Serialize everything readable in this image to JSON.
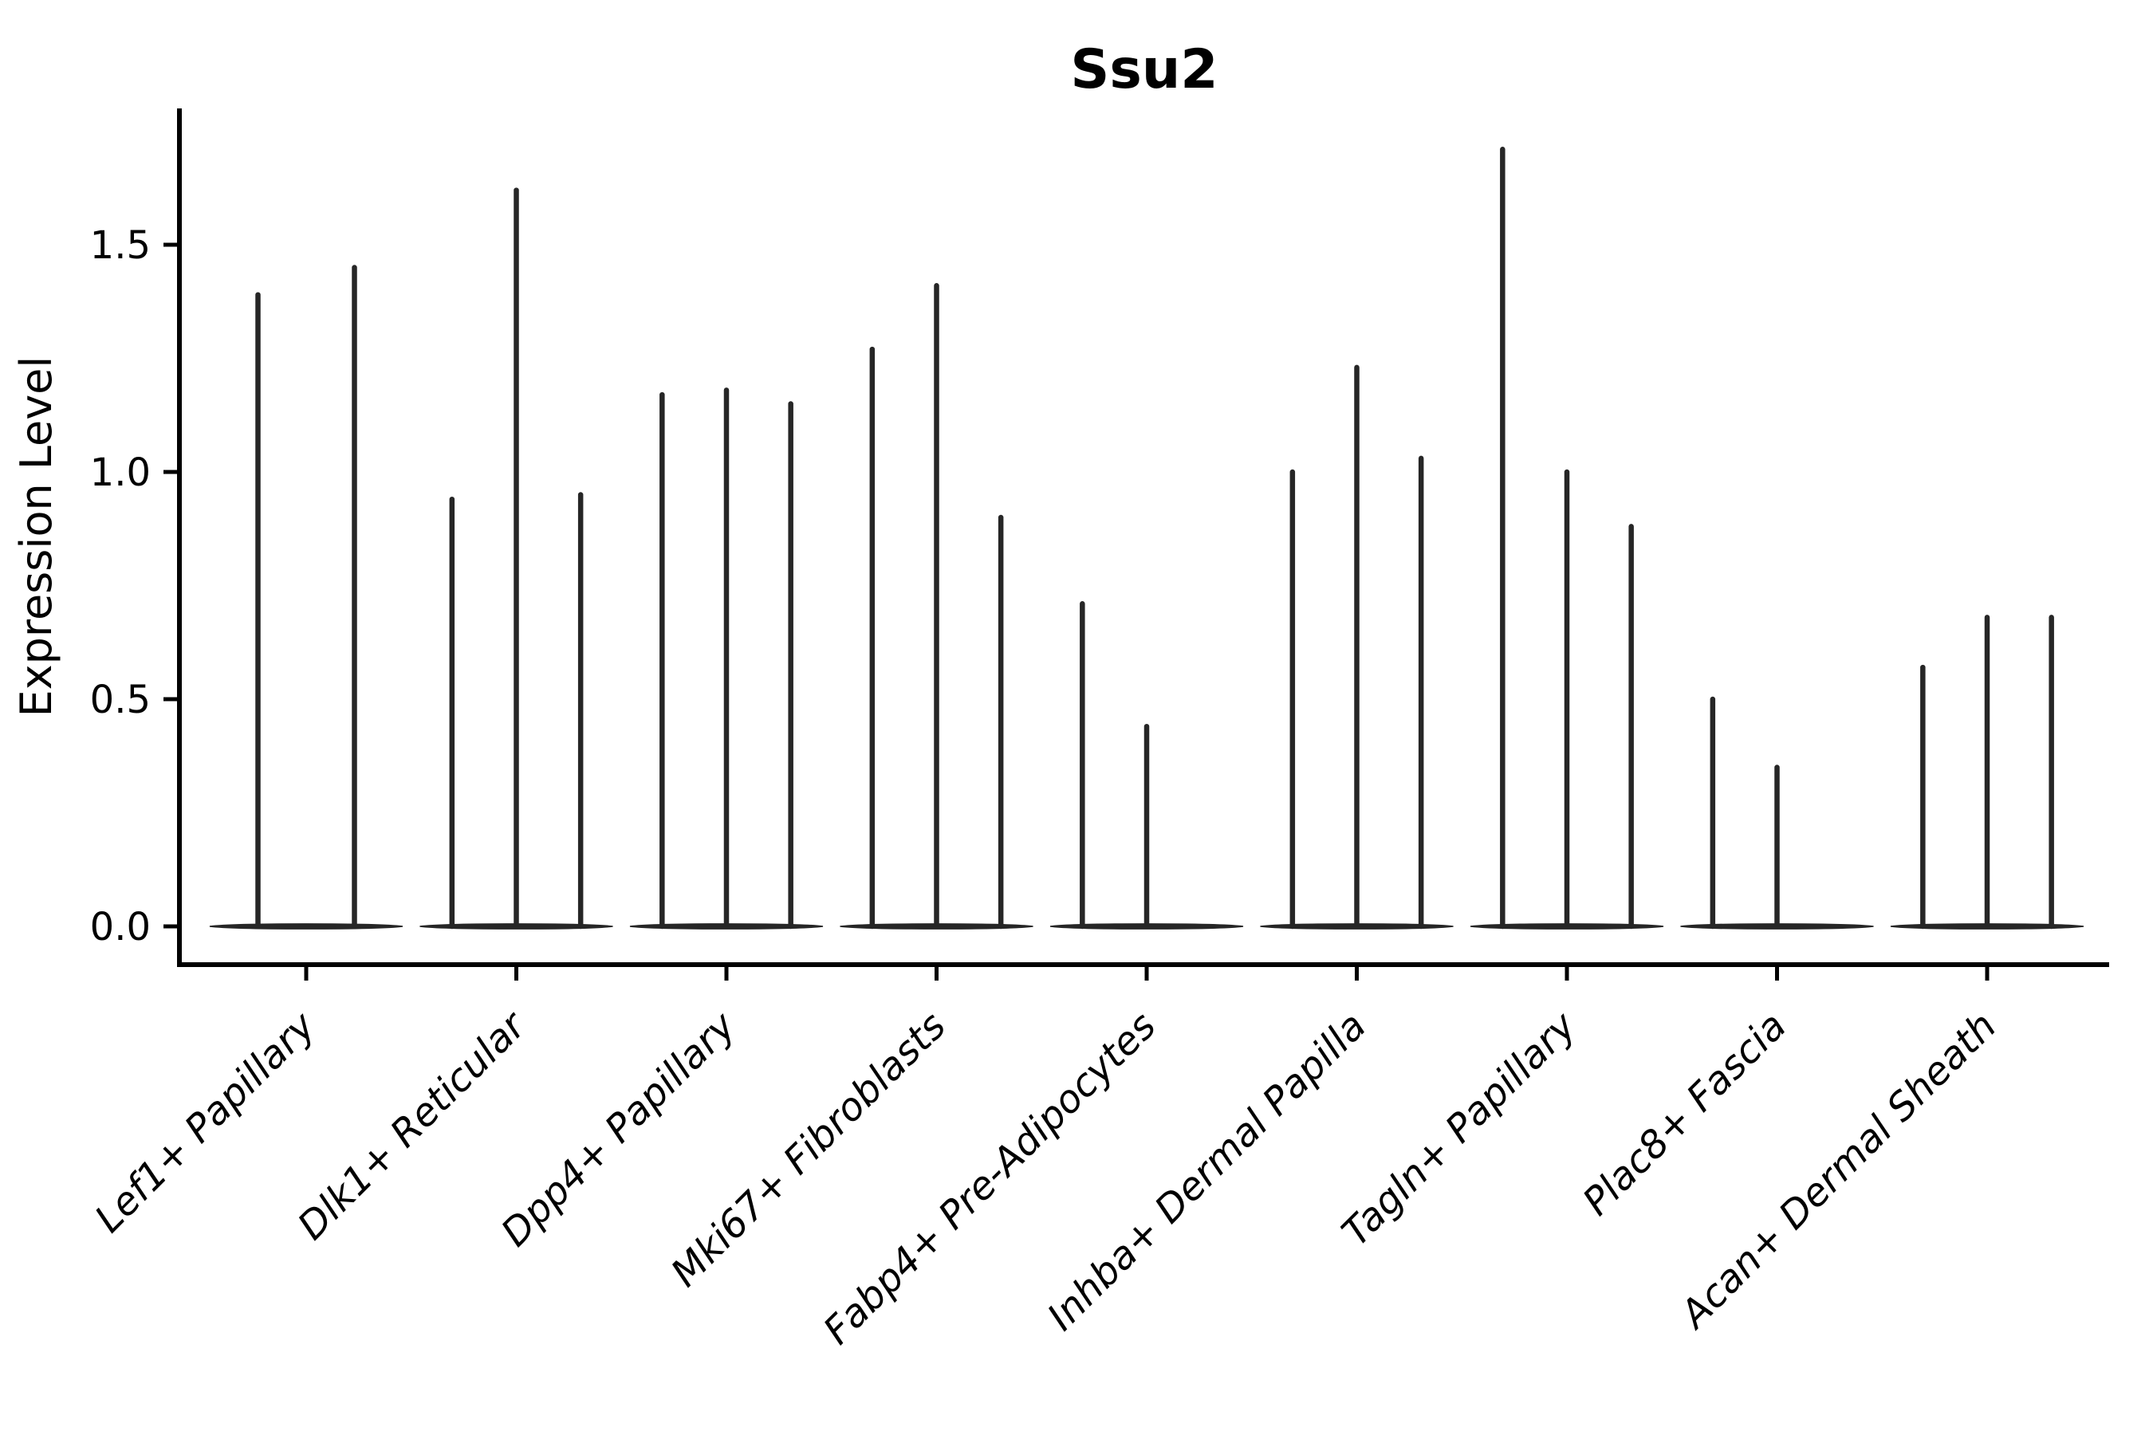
{
  "figure": {
    "title": "Ssu2",
    "y_axis_label": "Expression Level",
    "y_tick_labels": [
      "0.0",
      "0.5",
      "1.0",
      "1.5"
    ],
    "x_tick_labels": [
      "Lef1+ Papillary",
      "Dlk1+ Reticular",
      "Dpp4+ Papillary",
      "Mki67+ Fibroblasts",
      "Fabp4+ Pre-Adipocytes",
      "Inhba+ Dermal Papilla",
      "Tagln+ Papillary",
      "Plac8+ Fascia",
      "Acan+ Dermal Sheath"
    ]
  },
  "chart_data": {
    "type": "violin",
    "title": "Ssu2",
    "xlabel": "",
    "ylabel": "Expression Level",
    "yticks": [
      0.0,
      0.5,
      1.0,
      1.5
    ],
    "ylim": [
      -0.09,
      1.8
    ],
    "grid": false,
    "legend": null,
    "categories": [
      "Lef1+ Papillary",
      "Dlk1+ Reticular",
      "Dpp4+ Papillary",
      "Mki67+ Fibroblasts",
      "Fabp4+ Pre-Adipocytes",
      "Inhba+ Dermal Papilla",
      "Tagln+ Papillary",
      "Plac8+ Fascia",
      "Acan+ Dermal Sheath"
    ],
    "groups": [
      {
        "category": "Lef1+ Papillary",
        "violin_peak_values": [
          1.39,
          1.45
        ]
      },
      {
        "category": "Dlk1+ Reticular",
        "violin_peak_values": [
          0.94,
          1.62,
          0.95
        ]
      },
      {
        "category": "Dpp4+ Papillary",
        "violin_peak_values": [
          1.17,
          1.18,
          1.15
        ]
      },
      {
        "category": "Mki67+ Fibroblasts",
        "violin_peak_values": [
          1.27,
          1.41,
          0.9
        ]
      },
      {
        "category": "Fabp4+ Pre-Adipocytes",
        "violin_peak_values": [
          0.71,
          0.44,
          0.0
        ]
      },
      {
        "category": "Inhba+ Dermal Papilla",
        "violin_peak_values": [
          1.0,
          1.23,
          1.03
        ]
      },
      {
        "category": "Tagln+ Papillary",
        "violin_peak_values": [
          1.71,
          1.0,
          0.88
        ]
      },
      {
        "category": "Plac8+ Fascia",
        "violin_peak_values": [
          0.5,
          0.35,
          0.0
        ]
      },
      {
        "category": "Acan+ Dermal Sheath",
        "violin_peak_values": [
          0.57,
          0.68,
          0.68
        ]
      }
    ],
    "style": {
      "violin_color": "#262626",
      "axis_color": "#000000",
      "background_color": "#ffffff"
    }
  }
}
